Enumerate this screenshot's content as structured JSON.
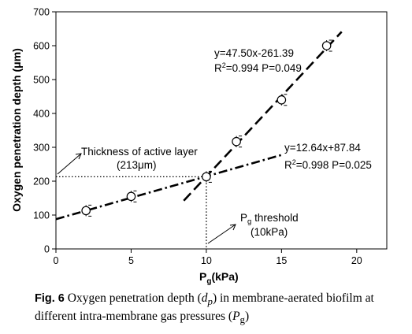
{
  "chart_data": {
    "type": "scatter",
    "xlabel": "P",
    "xlabel_sub": "g",
    "xlabel_unit": "(kPa)",
    "ylabel": "Oxygen penetration depth (μm)",
    "xlim": [
      0,
      22
    ],
    "ylim": [
      0,
      700
    ],
    "x_ticks": [
      0,
      5,
      10,
      15,
      20
    ],
    "y_ticks": [
      0,
      100,
      200,
      300,
      400,
      500,
      600,
      700
    ],
    "grid": false,
    "series": [
      {
        "points": [
          {
            "x": 2,
            "y": 113
          },
          {
            "x": 5,
            "y": 155
          },
          {
            "x": 10,
            "y": 213
          },
          {
            "x": 12,
            "y": 317
          },
          {
            "x": 15,
            "y": 440
          },
          {
            "x": 18,
            "y": 600
          }
        ]
      }
    ],
    "fits": [
      {
        "style": "dash",
        "slope": 47.5,
        "intercept": -261.39,
        "x_range": [
          8.5,
          19
        ],
        "equation": "y=47.50x-261.39",
        "r2_prefix": "R",
        "r2_rest": "=0.994  P=0.049"
      },
      {
        "style": "dashdot",
        "slope": 12.64,
        "intercept": 87.84,
        "x_range": [
          0,
          15
        ],
        "equation": "y=12.64x+87.84",
        "r2_prefix": "R",
        "r2_rest": "=0.998  P=0.025"
      }
    ],
    "reference_lines": {
      "x": 10,
      "y": 213
    },
    "annotations": [
      {
        "line1": "Thickness of active layer",
        "line2": "(213μm)"
      },
      {
        "line1_p": "P",
        "line1_sub": "g",
        "line1_rest": " threshold",
        "line2": "(10kPa)"
      }
    ]
  },
  "caption": {
    "label": "Fig. 6",
    "text_1": "  Oxygen penetration depth (",
    "dp_d": "d",
    "dp_p": "p",
    "text_2": ") in membrane-aerated biofilm at different intra-membrane gas pressures (",
    "pg_p": "P",
    "pg_g": "g",
    "text_3": ")"
  }
}
